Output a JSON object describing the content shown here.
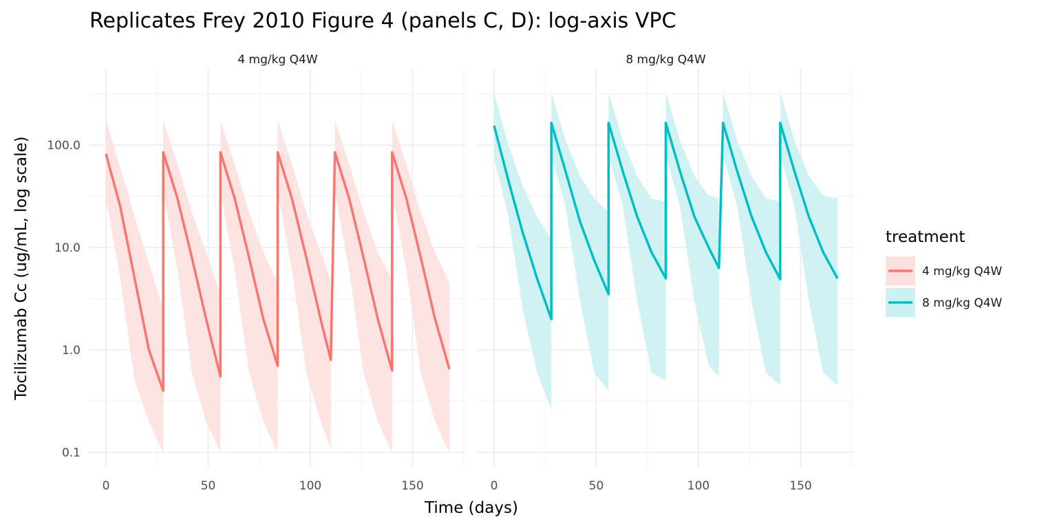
{
  "chart_data": {
    "type": "line",
    "title": "Replicates Frey 2010 Figure 4 (panels C, D): log-axis VPC",
    "xlabel": "Time (days)",
    "ylabel": "Tocilizumab Cc (ug/mL, log scale)",
    "yscale": "log10",
    "ylim": [
      0.075,
      340
    ],
    "xlim": [
      -8,
      175
    ],
    "y_ticks": [
      100,
      10,
      1,
      0.1
    ],
    "y_tick_labels": [
      "100.0",
      "10.0",
      "1.0",
      "0.1"
    ],
    "x_ticks": [
      0,
      50,
      100,
      150
    ],
    "x_tick_labels": [
      "0",
      "50",
      "100",
      "150"
    ],
    "grid": true,
    "legend": {
      "title": "treatment",
      "position": "right",
      "entries": [
        "4 mg/kg Q4W",
        "8 mg/kg Q4W"
      ]
    },
    "panels": [
      {
        "strip": "4 mg/kg Q4W",
        "color": "#F8766D",
        "band_color": "#FDE0DE",
        "cycles": [
          {
            "x": [
              0,
              7,
              14,
              21,
              28
            ],
            "median": [
              82,
              25,
              5,
              1.0,
              0.4
            ],
            "lower": [
              30,
              5,
              0.5,
              0.2,
              0.1
            ],
            "upper": [
              175,
              60,
              20,
              7,
              2.5
            ]
          },
          {
            "x": [
              28,
              35,
              42,
              49,
              56
            ],
            "median": [
              85,
              30,
              8,
              2,
              0.55
            ],
            "lower": [
              35,
              6,
              0.6,
              0.2,
              0.1
            ],
            "upper": [
              175,
              65,
              22,
              9,
              3.5
            ]
          },
          {
            "x": [
              56,
              63,
              70,
              77,
              84
            ],
            "median": [
              85,
              30,
              8,
              2,
              0.7
            ],
            "lower": [
              35,
              6,
              0.6,
              0.2,
              0.1
            ],
            "upper": [
              175,
              65,
              22,
              9,
              4.5
            ]
          },
          {
            "x": [
              84,
              91,
              98,
              105,
              110
            ],
            "median": [
              85,
              30,
              8,
              2,
              0.8
            ],
            "lower": [
              35,
              6,
              0.6,
              0.2,
              0.11
            ],
            "upper": [
              175,
              65,
              22,
              9,
              4.8
            ]
          },
          {
            "x": [
              112,
              119,
              126,
              133,
              140
            ],
            "median": [
              85,
              30,
              8,
              2,
              0.63
            ],
            "lower": [
              35,
              6,
              0.6,
              0.2,
              0.1
            ],
            "upper": [
              175,
              65,
              22,
              9,
              4.8
            ]
          },
          {
            "x": [
              140,
              147,
              154,
              161,
              168
            ],
            "median": [
              85,
              30,
              8,
              2,
              0.65
            ],
            "lower": [
              35,
              6,
              0.6,
              0.2,
              0.1
            ],
            "upper": [
              175,
              65,
              22,
              9,
              4.5
            ]
          }
        ]
      },
      {
        "strip": "8 mg/kg Q4W",
        "color": "#00BFC4",
        "band_color": "#CCF1F2",
        "cycles": [
          {
            "x": [
              0,
              7,
              14,
              21,
              28
            ],
            "median": [
              155,
              45,
              14,
              5,
              2.0
            ],
            "lower": [
              75,
              20,
              2.5,
              0.6,
              0.26
            ],
            "upper": [
              320,
              100,
              40,
              20,
              12
            ]
          },
          {
            "x": [
              28,
              35,
              42,
              49,
              56
            ],
            "median": [
              165,
              55,
              18,
              7.5,
              3.5
            ],
            "lower": [
              80,
              25,
              3,
              0.6,
              0.4
            ],
            "upper": [
              330,
              110,
              50,
              30,
              22
            ]
          },
          {
            "x": [
              56,
              63,
              70,
              77,
              84
            ],
            "median": [
              165,
              55,
              20,
              9,
              5
            ],
            "lower": [
              80,
              25,
              3,
              0.6,
              0.5
            ],
            "upper": [
              330,
              110,
              50,
              30,
              28
            ]
          },
          {
            "x": [
              84,
              91,
              98,
              105,
              110
            ],
            "median": [
              165,
              55,
              20,
              10,
              6.3
            ],
            "lower": [
              80,
              25,
              3,
              0.7,
              0.55
            ],
            "upper": [
              330,
              110,
              50,
              32,
              30
            ]
          },
          {
            "x": [
              112,
              119,
              126,
              133,
              140
            ],
            "median": [
              165,
              55,
              20,
              9,
              4.9
            ],
            "lower": [
              80,
              25,
              3,
              0.6,
              0.45
            ],
            "upper": [
              330,
              110,
              50,
              30,
              28
            ]
          },
          {
            "x": [
              140,
              147,
              154,
              161,
              168
            ],
            "median": [
              165,
              55,
              20,
              9,
              5
            ],
            "lower": [
              80,
              25,
              3,
              0.6,
              0.45
            ],
            "upper": [
              330,
              110,
              50,
              32,
              30
            ]
          }
        ]
      }
    ]
  }
}
